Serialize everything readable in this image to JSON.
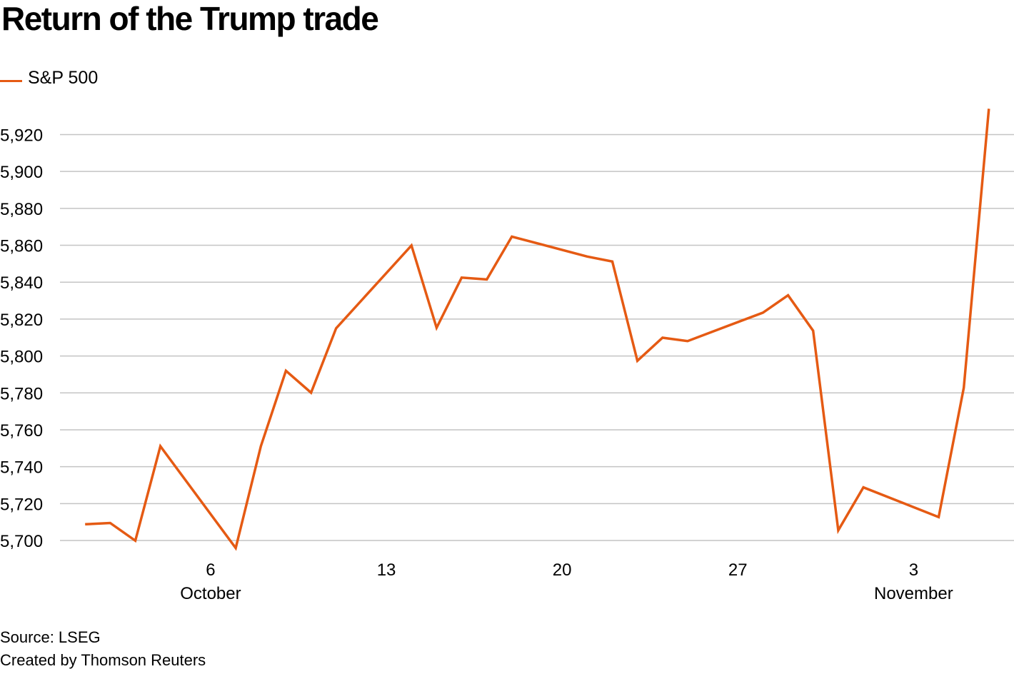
{
  "chart_data": {
    "type": "line",
    "title": "Return of the Trump trade",
    "legend": {
      "placement": "top-left"
    },
    "series": [
      {
        "name": "S&P 500",
        "color": "#e55a13",
        "points": [
          [
            "2024-10-01",
            5708.8
          ],
          [
            "2024-10-02",
            5709.5
          ],
          [
            "2024-10-03",
            5699.9
          ],
          [
            "2024-10-04",
            5751.1
          ],
          [
            "2024-10-07",
            5695.9
          ],
          [
            "2024-10-08",
            5751.1
          ],
          [
            "2024-10-09",
            5792.0
          ],
          [
            "2024-10-10",
            5780.1
          ],
          [
            "2024-10-11",
            5815.0
          ],
          [
            "2024-10-14",
            5859.9
          ],
          [
            "2024-10-15",
            5815.3
          ],
          [
            "2024-10-16",
            5842.5
          ],
          [
            "2024-10-17",
            5841.5
          ],
          [
            "2024-10-18",
            5864.7
          ],
          [
            "2024-10-21",
            5853.9
          ],
          [
            "2024-10-22",
            5851.2
          ],
          [
            "2024-10-23",
            5797.4
          ],
          [
            "2024-10-24",
            5809.9
          ],
          [
            "2024-10-25",
            5808.1
          ],
          [
            "2024-10-28",
            5823.5
          ],
          [
            "2024-10-29",
            5832.9
          ],
          [
            "2024-10-30",
            5813.7
          ],
          [
            "2024-10-31",
            5705.5
          ],
          [
            "2024-11-01",
            5728.8
          ],
          [
            "2024-11-04",
            5712.7
          ],
          [
            "2024-11-05",
            5782.8
          ],
          [
            "2024-11-06",
            5934.0
          ]
        ]
      }
    ],
    "x_axis": {
      "range": [
        "2024-09-30",
        "2024-11-07"
      ],
      "ticks": [
        {
          "date": "2024-10-06",
          "label": "6",
          "month": "October"
        },
        {
          "date": "2024-10-13",
          "label": "13",
          "month": ""
        },
        {
          "date": "2024-10-20",
          "label": "20",
          "month": ""
        },
        {
          "date": "2024-10-27",
          "label": "27",
          "month": ""
        },
        {
          "date": "2024-11-03",
          "label": "3",
          "month": "November"
        }
      ]
    },
    "y_axis": {
      "range": [
        5690,
        5940
      ],
      "ticks": [
        5700,
        5720,
        5740,
        5760,
        5780,
        5800,
        5820,
        5840,
        5860,
        5880,
        5900,
        5920
      ],
      "labels": [
        "5,700",
        "5,720",
        "5,740",
        "5,760",
        "5,780",
        "5,800",
        "5,820",
        "5,840",
        "5,860",
        "5,880",
        "5,900",
        "5,920"
      ]
    },
    "grid": true,
    "grid_color": "#c4c4c4"
  },
  "footer": {
    "source": "Source: LSEG",
    "credit": "Created by Thomson Reuters"
  }
}
